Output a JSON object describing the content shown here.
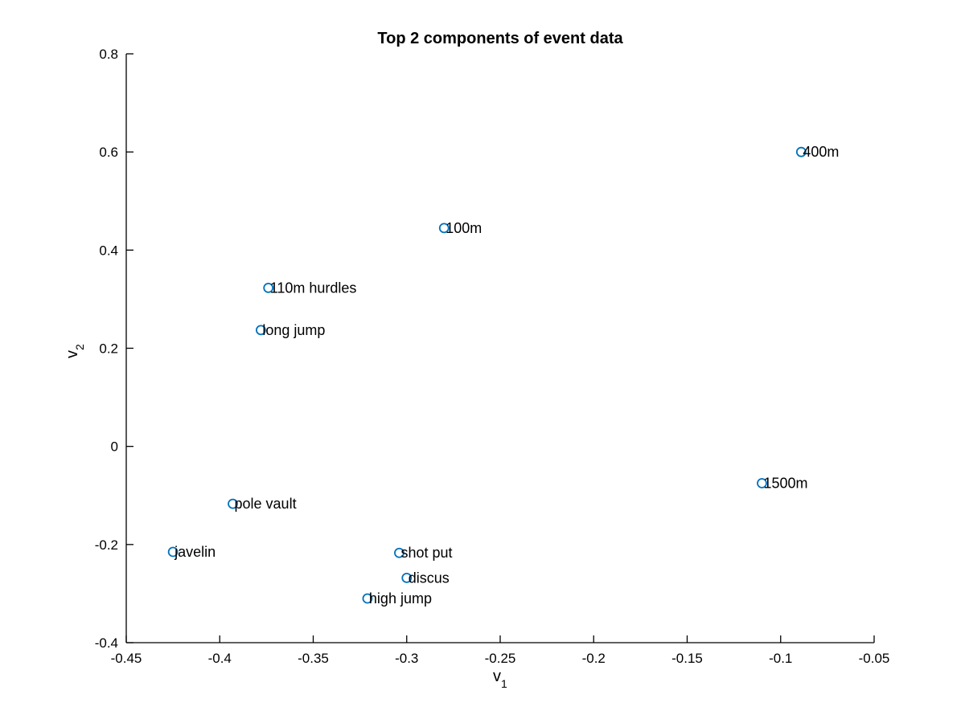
{
  "colors": {
    "marker": "#0072BD",
    "axis": "#000000"
  },
  "chart_data": {
    "type": "scatter",
    "title": "Top 2 components of event data",
    "xlabel": {
      "main": "v",
      "sub": "1"
    },
    "ylabel": {
      "main": "v",
      "sub": "2"
    },
    "xlim": [
      -0.45,
      -0.05
    ],
    "ylim": [
      -0.4,
      0.8
    ],
    "xticks": [
      -0.45,
      -0.4,
      -0.35,
      -0.3,
      -0.25,
      -0.2,
      -0.15,
      -0.1,
      -0.05
    ],
    "xtick_labels": [
      "-0.45",
      "-0.4",
      "-0.35",
      "-0.3",
      "-0.25",
      "-0.2",
      "-0.15",
      "-0.1",
      "-0.05"
    ],
    "yticks": [
      -0.4,
      -0.2,
      0,
      0.2,
      0.4,
      0.6,
      0.8
    ],
    "ytick_labels": [
      "-0.4",
      "-0.2",
      "0",
      "0.2",
      "0.4",
      "0.6",
      "0.8"
    ],
    "grid": false,
    "marker": "open-circle",
    "points": [
      {
        "label": "400m",
        "x": -0.089,
        "y": 0.6
      },
      {
        "label": "100m",
        "x": -0.28,
        "y": 0.445
      },
      {
        "label": "110m hurdles",
        "x": -0.374,
        "y": 0.323
      },
      {
        "label": "long jump",
        "x": -0.378,
        "y": 0.237
      },
      {
        "label": "1500m",
        "x": -0.11,
        "y": -0.075
      },
      {
        "label": "pole vault",
        "x": -0.393,
        "y": -0.117
      },
      {
        "label": "javelin",
        "x": -0.425,
        "y": -0.215
      },
      {
        "label": "shot put",
        "x": -0.304,
        "y": -0.217
      },
      {
        "label": "discus",
        "x": -0.3,
        "y": -0.268
      },
      {
        "label": "high jump",
        "x": -0.321,
        "y": -0.31
      }
    ]
  }
}
